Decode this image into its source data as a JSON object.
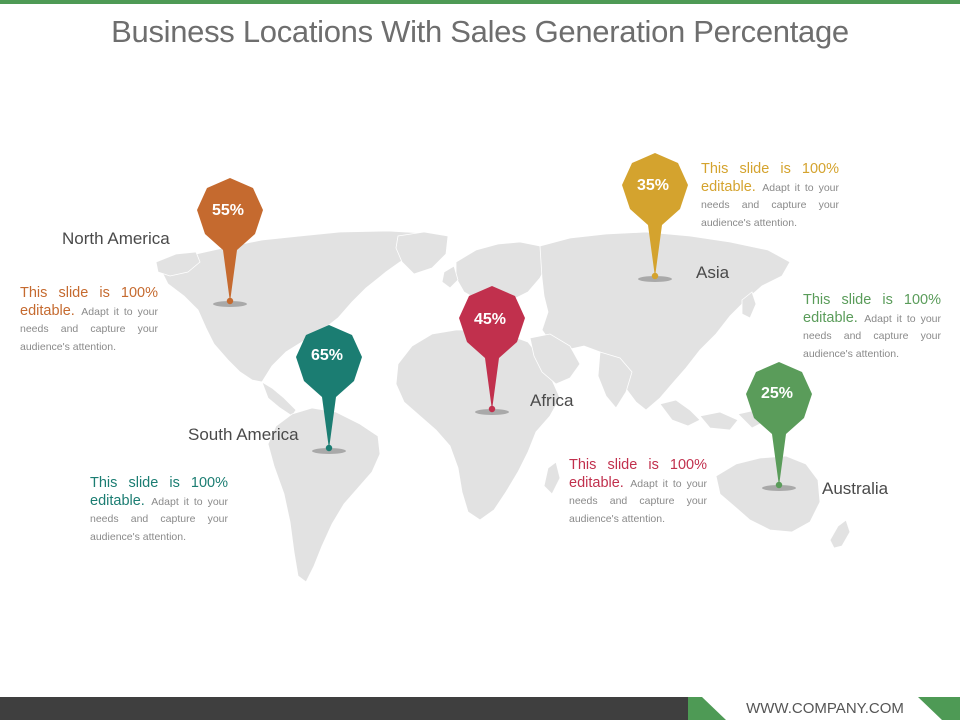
{
  "title": "Business Locations With Sales Generation Percentage",
  "footer_text": "WWW.COMPANY.COM",
  "colors": {
    "north_america": "#c56a2f",
    "south_america": "#1b7d72",
    "africa": "#c1304d",
    "asia": "#d4a32e",
    "australia": "#5a9c5a",
    "map_fill": "#e2e2e2",
    "accent_green": "#4e9a55"
  },
  "regions": {
    "north_america": {
      "name": "North America",
      "percent": "55%",
      "note_lead": "This slide is 100% editable.",
      "note_body": "Adapt it to your needs and capture your audience's attention."
    },
    "south_america": {
      "name": "South America",
      "percent": "65%",
      "note_lead": "This slide is 100% editable.",
      "note_body": "Adapt it to your needs and capture your audience's attention."
    },
    "africa": {
      "name": "Africa",
      "percent": "45%",
      "note_lead": "This slide is 100% editable.",
      "note_body": "Adapt it to your needs and capture your audience's attention."
    },
    "asia": {
      "name": "Asia",
      "percent": "35%",
      "note_lead": "This slide is 100% editable.",
      "note_body": "Adapt it to your needs and capture your audience's attention."
    },
    "australia": {
      "name": "Australia",
      "percent": "25%",
      "note_lead": "This slide is 100% editable.",
      "note_body": "Adapt it to your needs and capture your audience's attention."
    }
  }
}
